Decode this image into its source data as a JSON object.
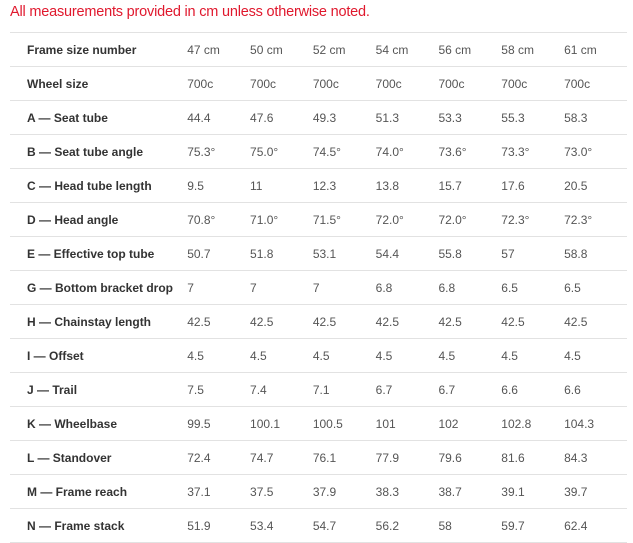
{
  "note": "All measurements provided in cm unless otherwise noted.",
  "colors": {
    "note": "#e0182d",
    "border": "#e2e2e2"
  },
  "table": {
    "rows": [
      {
        "label": "Frame size number",
        "values": [
          "47 cm",
          "50 cm",
          "52 cm",
          "54 cm",
          "56 cm",
          "58 cm",
          "61 cm"
        ]
      },
      {
        "label": "Wheel size",
        "values": [
          "700c",
          "700c",
          "700c",
          "700c",
          "700c",
          "700c",
          "700c"
        ]
      },
      {
        "label": "A — Seat tube",
        "values": [
          "44.4",
          "47.6",
          "49.3",
          "51.3",
          "53.3",
          "55.3",
          "58.3"
        ]
      },
      {
        "label": "B — Seat tube angle",
        "values": [
          "75.3°",
          "75.0°",
          "74.5°",
          "74.0°",
          "73.6°",
          "73.3°",
          "73.0°"
        ]
      },
      {
        "label": "C — Head tube length",
        "values": [
          "9.5",
          "11",
          "12.3",
          "13.8",
          "15.7",
          "17.6",
          "20.5"
        ]
      },
      {
        "label": "D — Head angle",
        "values": [
          "70.8°",
          "71.0°",
          "71.5°",
          "72.0°",
          "72.0°",
          "72.3°",
          "72.3°"
        ]
      },
      {
        "label": "E — Effective top tube",
        "values": [
          "50.7",
          "51.8",
          "53.1",
          "54.4",
          "55.8",
          "57",
          "58.8"
        ]
      },
      {
        "label": "G — Bottom bracket drop",
        "values": [
          "7",
          "7",
          "7",
          "6.8",
          "6.8",
          "6.5",
          "6.5"
        ]
      },
      {
        "label": "H — Chainstay length",
        "values": [
          "42.5",
          "42.5",
          "42.5",
          "42.5",
          "42.5",
          "42.5",
          "42.5"
        ]
      },
      {
        "label": "I — Offset",
        "values": [
          "4.5",
          "4.5",
          "4.5",
          "4.5",
          "4.5",
          "4.5",
          "4.5"
        ]
      },
      {
        "label": "J — Trail",
        "values": [
          "7.5",
          "7.4",
          "7.1",
          "6.7",
          "6.7",
          "6.6",
          "6.6"
        ]
      },
      {
        "label": "K — Wheelbase",
        "values": [
          "99.5",
          "100.1",
          "100.5",
          "101",
          "102",
          "102.8",
          "104.3"
        ]
      },
      {
        "label": "L — Standover",
        "values": [
          "72.4",
          "74.7",
          "76.1",
          "77.9",
          "79.6",
          "81.6",
          "84.3"
        ]
      },
      {
        "label": "M — Frame reach",
        "values": [
          "37.1",
          "37.5",
          "37.9",
          "38.3",
          "38.7",
          "39.1",
          "39.7"
        ]
      },
      {
        "label": "N — Frame stack",
        "values": [
          "51.9",
          "53.4",
          "54.7",
          "56.2",
          "58",
          "59.7",
          "62.4"
        ]
      }
    ]
  }
}
